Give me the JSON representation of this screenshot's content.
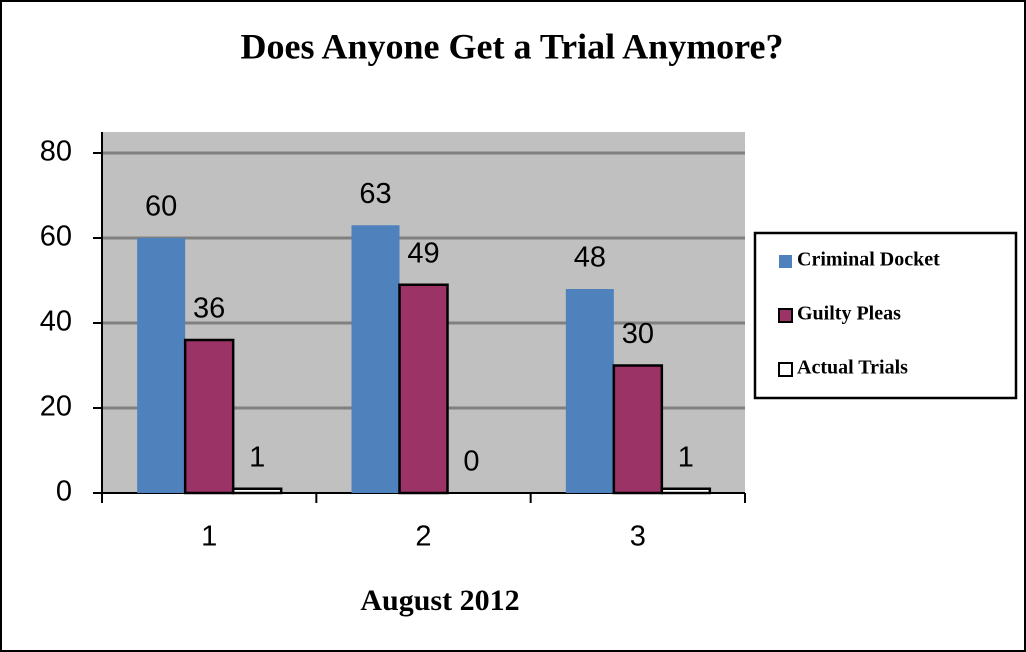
{
  "chart_data": {
    "type": "bar",
    "title": "Does Anyone Get a Trial Anymore?",
    "x_label": "August 2012",
    "categories": [
      "1",
      "2",
      "3"
    ],
    "series": [
      {
        "name": "Criminal Docket",
        "color": "#4f81bd",
        "values": [
          60,
          63,
          48
        ]
      },
      {
        "name": "Guilty Pleas",
        "color": "#9b3366",
        "values": [
          36,
          49,
          30
        ]
      },
      {
        "name": "Actual Trials",
        "color": "#ffffff",
        "values": [
          1,
          0,
          1
        ]
      }
    ],
    "ylim": [
      0,
      80
    ],
    "yticks": [
      0,
      20,
      40,
      60,
      80
    ],
    "grid": true,
    "legend": "right"
  }
}
